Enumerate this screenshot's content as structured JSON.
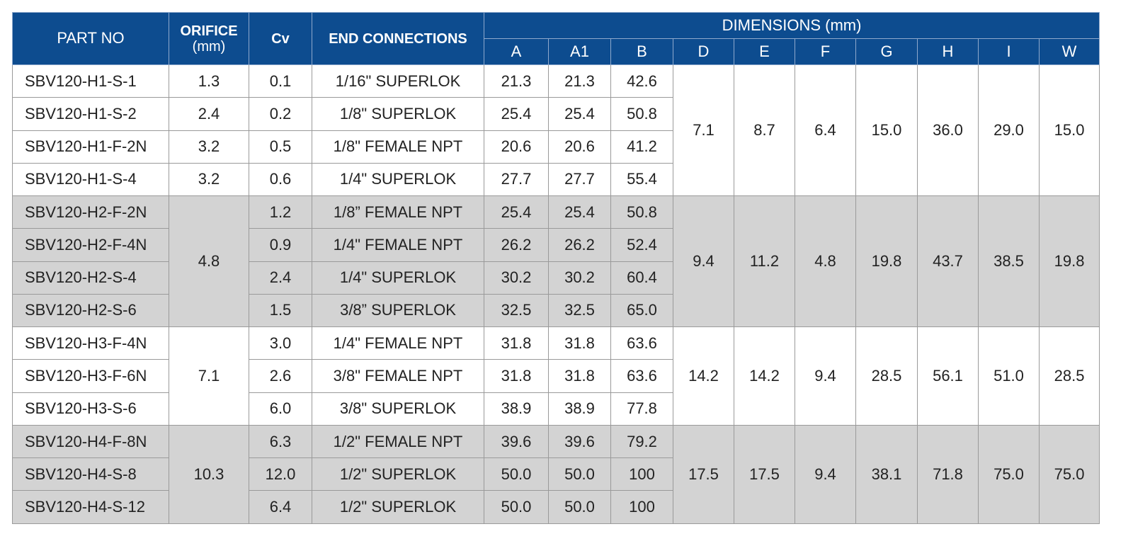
{
  "header": {
    "part_no": "PART NO",
    "orifice": "ORIFICE",
    "orifice_unit": "(mm)",
    "cv": "Cv",
    "end_connections": "END CONNECTIONS",
    "dimensions": "DIMENSIONS (mm)",
    "dimension_columns": [
      "A",
      "A1",
      "B",
      "D",
      "E",
      "F",
      "G",
      "H",
      "I",
      "W"
    ]
  },
  "groups": [
    {
      "dims": [
        "7.1",
        "8.7",
        "6.4",
        "15.0",
        "36.0",
        "29.0",
        "15.0"
      ],
      "rows": [
        {
          "part": "SBV120-H1-S-1",
          "orifice": "1.3",
          "cv": "0.1",
          "end": "1/16\" SUPERLOK",
          "a": "21.3",
          "a1": "21.3",
          "b": "42.6"
        },
        {
          "part": "SBV120-H1-S-2",
          "orifice": "2.4",
          "cv": "0.2",
          "end": "1/8\" SUPERLOK",
          "a": "25.4",
          "a1": "25.4",
          "b": "50.8"
        },
        {
          "part": "SBV120-H1-F-2N",
          "orifice": "3.2",
          "cv": "0.5",
          "end": "1/8\" FEMALE NPT",
          "a": "20.6",
          "a1": "20.6",
          "b": "41.2"
        },
        {
          "part": "SBV120-H1-S-4",
          "orifice": "3.2",
          "cv": "0.6",
          "end": "1/4\" SUPERLOK",
          "a": "27.7",
          "a1": "27.7",
          "b": "55.4"
        }
      ]
    },
    {
      "orifice": "4.8",
      "dims": [
        "9.4",
        "11.2",
        "4.8",
        "19.8",
        "43.7",
        "38.5",
        "19.8"
      ],
      "rows": [
        {
          "part": "SBV120-H2-F-2N",
          "cv": "1.2",
          "end": "1/8” FEMALE NPT",
          "a": "25.4",
          "a1": "25.4",
          "b": "50.8"
        },
        {
          "part": "SBV120-H2-F-4N",
          "cv": "0.9",
          "end": "1/4\" FEMALE NPT",
          "a": "26.2",
          "a1": "26.2",
          "b": "52.4"
        },
        {
          "part": "SBV120-H2-S-4",
          "cv": "2.4",
          "end": "1/4\" SUPERLOK",
          "a": "30.2",
          "a1": "30.2",
          "b": "60.4"
        },
        {
          "part": "SBV120-H2-S-6",
          "cv": "1.5",
          "end": "3/8” SUPERLOK",
          "a": "32.5",
          "a1": "32.5",
          "b": "65.0"
        }
      ]
    },
    {
      "orifice": "7.1",
      "dims": [
        "14.2",
        "14.2",
        "9.4",
        "28.5",
        "56.1",
        "51.0",
        "28.5"
      ],
      "rows": [
        {
          "part": "SBV120-H3-F-4N",
          "cv": "3.0",
          "end": "1/4\" FEMALE NPT",
          "a": "31.8",
          "a1": "31.8",
          "b": "63.6"
        },
        {
          "part": "SBV120-H3-F-6N",
          "cv": "2.6",
          "end": "3/8\" FEMALE NPT",
          "a": "31.8",
          "a1": "31.8",
          "b": "63.6"
        },
        {
          "part": "SBV120-H3-S-6",
          "cv": "6.0",
          "end": "3/8\" SUPERLOK",
          "a": "38.9",
          "a1": "38.9",
          "b": "77.8"
        }
      ]
    },
    {
      "orifice": "10.3",
      "dims": [
        "17.5",
        "17.5",
        "9.4",
        "38.1",
        "71.8",
        "75.0",
        "75.0"
      ],
      "rows": [
        {
          "part": "SBV120-H4-F-8N",
          "cv": "6.3",
          "end": "1/2\" FEMALE NPT",
          "a": "39.6",
          "a1": "39.6",
          "b": "79.2"
        },
        {
          "part": "SBV120-H4-S-8",
          "cv": "12.0",
          "end": "1/2\" SUPERLOK",
          "a": "50.0",
          "a1": "50.0",
          "b": "100"
        },
        {
          "part": "SBV120-H4-S-12",
          "cv": "6.4",
          "end": "1/2\" SUPERLOK",
          "a": "50.0",
          "a1": "50.0",
          "b": "100"
        }
      ]
    }
  ]
}
